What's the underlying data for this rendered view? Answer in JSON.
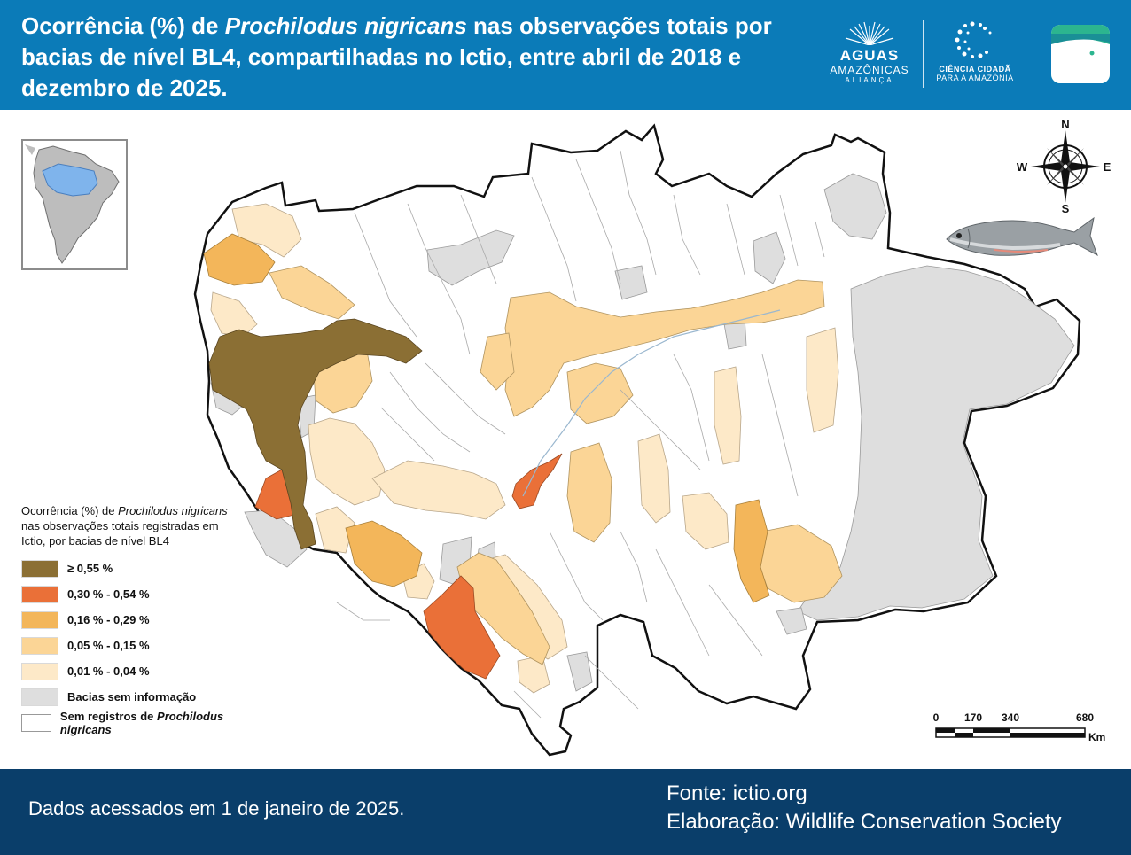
{
  "header": {
    "title_part1": "Ocorrência (%) de ",
    "title_species": "Prochilodus nigricans",
    "title_part2": " nas observações totais por bacias de nível BL4, compartilhadas no Ictio, entre abril de 2018 e dezembro de 2025."
  },
  "logos": {
    "aguas_line1": "AGUAS",
    "aguas_line2": "AMAZÔNICAS",
    "aguas_line3": "ALIANÇA",
    "cc_line1": "CIÊNCIA CIDADÃ",
    "cc_line2": "PARA A AMAZÔNIA"
  },
  "compass": {
    "n": "N",
    "s": "S",
    "e": "E",
    "w": "W"
  },
  "legend": {
    "title_part1": "Ocorrência (%) de ",
    "title_species": "Prochilodus nigricans",
    "title_part2": " nas observações totais registradas em Ictio, por bacias de nível BL4",
    "items": [
      {
        "label": "≥ 0,55 %",
        "color": "#8b6f34"
      },
      {
        "label": "0,30 % - 0,54 %",
        "color": "#ea7038"
      },
      {
        "label": "0,16 % - 0,29 %",
        "color": "#f3b65a"
      },
      {
        "label": "0,05 % - 0,15 %",
        "color": "#fbd596"
      },
      {
        "label": "0,01 % - 0,04 %",
        "color": "#fde9c8"
      },
      {
        "label": "Bacias sem informação",
        "color": "#dedede"
      }
    ],
    "no_record_prefix": "Sem registros de ",
    "no_record_species": "Prochilodus nigricans",
    "no_record_color": "#ffffff"
  },
  "scale": {
    "t0": "0",
    "t1": "170",
    "t2": "340",
    "t3": "680",
    "unit": "Km"
  },
  "footer": {
    "accessed": "Dados acessados em 1 de janeiro de 2025.",
    "source": "Fonte: ictio.org",
    "made_by": "Elaboração: Wildlife Conservation Society"
  }
}
